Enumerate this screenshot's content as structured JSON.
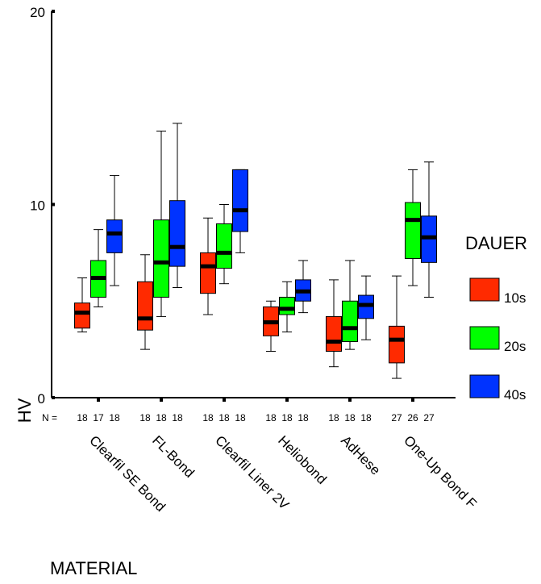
{
  "chart_data": {
    "type": "boxplot",
    "title": "",
    "xlabel": "MATERIAL",
    "ylabel": "HV",
    "ylim": [
      0,
      20
    ],
    "yticks": [
      0,
      10,
      20
    ],
    "grid": false,
    "legend_placement": "right",
    "legend_title": "DAUER",
    "n_label": "N =",
    "categories": [
      "Clearfil SE Bond",
      "FL-Bond",
      "Clearfil Liner 2V",
      "Heliobond",
      "AdHese",
      "One-Up Bond F"
    ],
    "series": [
      {
        "name": "10s",
        "color": "#ff2a00",
        "n": [
          18,
          18,
          18,
          18,
          18,
          27
        ],
        "boxes": [
          {
            "min": 3.4,
            "q1": 3.6,
            "median": 4.4,
            "q3": 4.9,
            "max": 6.2
          },
          {
            "min": 2.5,
            "q1": 3.5,
            "median": 4.1,
            "q3": 6.0,
            "max": 7.4
          },
          {
            "min": 4.3,
            "q1": 5.4,
            "median": 6.8,
            "q3": 7.5,
            "max": 9.3
          },
          {
            "min": 2.4,
            "q1": 3.2,
            "median": 3.9,
            "q3": 4.7,
            "max": 5.0
          },
          {
            "min": 1.6,
            "q1": 2.4,
            "median": 2.9,
            "q3": 4.2,
            "max": 6.1
          },
          {
            "min": 1.0,
            "q1": 1.8,
            "median": 3.0,
            "q3": 3.7,
            "max": 6.3
          }
        ]
      },
      {
        "name": "20s",
        "color": "#00ff00",
        "n": [
          17,
          18,
          18,
          18,
          18,
          26
        ],
        "boxes": [
          {
            "min": 4.7,
            "q1": 5.2,
            "median": 6.2,
            "q3": 7.1,
            "max": 8.7
          },
          {
            "min": 4.2,
            "q1": 5.2,
            "median": 7.0,
            "q3": 9.2,
            "max": 13.8
          },
          {
            "min": 5.9,
            "q1": 6.7,
            "median": 7.5,
            "q3": 9.0,
            "max": 10.0
          },
          {
            "min": 3.4,
            "q1": 4.3,
            "median": 4.6,
            "q3": 5.2,
            "max": 6.0
          },
          {
            "min": 2.5,
            "q1": 2.9,
            "median": 3.6,
            "q3": 5.0,
            "max": 7.1
          },
          {
            "min": 5.8,
            "q1": 7.2,
            "median": 9.2,
            "q3": 10.1,
            "max": 11.8
          }
        ]
      },
      {
        "name": "40s",
        "color": "#0033ff",
        "n": [
          18,
          18,
          18,
          18,
          18,
          27
        ],
        "boxes": [
          {
            "min": 5.8,
            "q1": 7.5,
            "median": 8.5,
            "q3": 9.2,
            "max": 11.5
          },
          {
            "min": 5.7,
            "q1": 6.8,
            "median": 7.8,
            "q3": 10.2,
            "max": 14.2
          },
          {
            "min": 7.5,
            "q1": 8.6,
            "median": 9.7,
            "q3": 11.8,
            "max": 11.8
          },
          {
            "min": 4.4,
            "q1": 5.0,
            "median": 5.5,
            "q3": 6.1,
            "max": 7.1
          },
          {
            "min": 3.0,
            "q1": 4.1,
            "median": 4.8,
            "q3": 5.3,
            "max": 6.3
          },
          {
            "min": 5.2,
            "q1": 7.0,
            "median": 8.3,
            "q3": 9.4,
            "max": 12.2
          }
        ]
      }
    ]
  }
}
